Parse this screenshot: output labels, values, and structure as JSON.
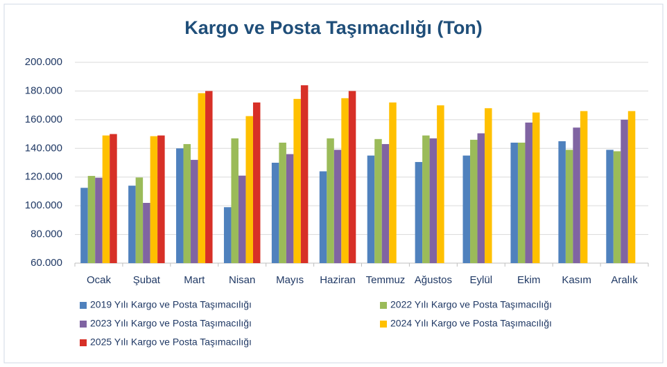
{
  "chart_data": {
    "type": "bar",
    "title": "Kargo ve Posta Taşımacılığı (Ton)",
    "categories": [
      "Ocak",
      "Şubat",
      "Mart",
      "Nisan",
      "Mayıs",
      "Haziran",
      "Temmuz",
      "Ağustos",
      "Eylül",
      "Ekim",
      "Kasım",
      "Aralık"
    ],
    "series": [
      {
        "name": "2019 Yılı Kargo ve Posta Taşımacılığı",
        "color": "#4f81bd",
        "values": [
          112500,
          114000,
          140000,
          99000,
          130000,
          124000,
          135000,
          130500,
          135000,
          144000,
          145000,
          139000
        ]
      },
      {
        "name": "2022 Yılı Kargo ve Posta Taşımacılığı",
        "color": "#9bbb59",
        "values": [
          120800,
          119700,
          143000,
          147000,
          144000,
          147000,
          146500,
          149000,
          146000,
          144000,
          139000,
          138000
        ]
      },
      {
        "name": "2023 Yılı Kargo ve Posta Taşımacılığı",
        "color": "#8064a2",
        "values": [
          119500,
          102000,
          132000,
          121000,
          136000,
          139000,
          143000,
          147000,
          150500,
          158000,
          154500,
          160000
        ]
      },
      {
        "name": "2024 Yılı Kargo ve Posta Taşımacılığı",
        "color": "#ffc000",
        "values": [
          149000,
          148500,
          178500,
          162500,
          174500,
          175000,
          172000,
          170000,
          168000,
          165000,
          166000,
          166000
        ]
      },
      {
        "name": "2025 Yılı Kargo ve Posta Taşımacılığı",
        "color": "#d73027",
        "values": [
          150000,
          149000,
          180000,
          172000,
          184000,
          180000,
          null,
          null,
          null,
          null,
          null,
          null
        ]
      }
    ],
    "ylim": [
      60000,
      200000
    ],
    "yticks": [
      {
        "value": 60000,
        "label": "60.000"
      },
      {
        "value": 80000,
        "label": "80.000"
      },
      {
        "value": 100000,
        "label": "100.000"
      },
      {
        "value": 120000,
        "label": "120.000"
      },
      {
        "value": 140000,
        "label": "140.000"
      },
      {
        "value": 160000,
        "label": "160.000"
      },
      {
        "value": 180000,
        "label": "180.000"
      },
      {
        "value": 200000,
        "label": "200.000"
      }
    ],
    "grid": true
  }
}
